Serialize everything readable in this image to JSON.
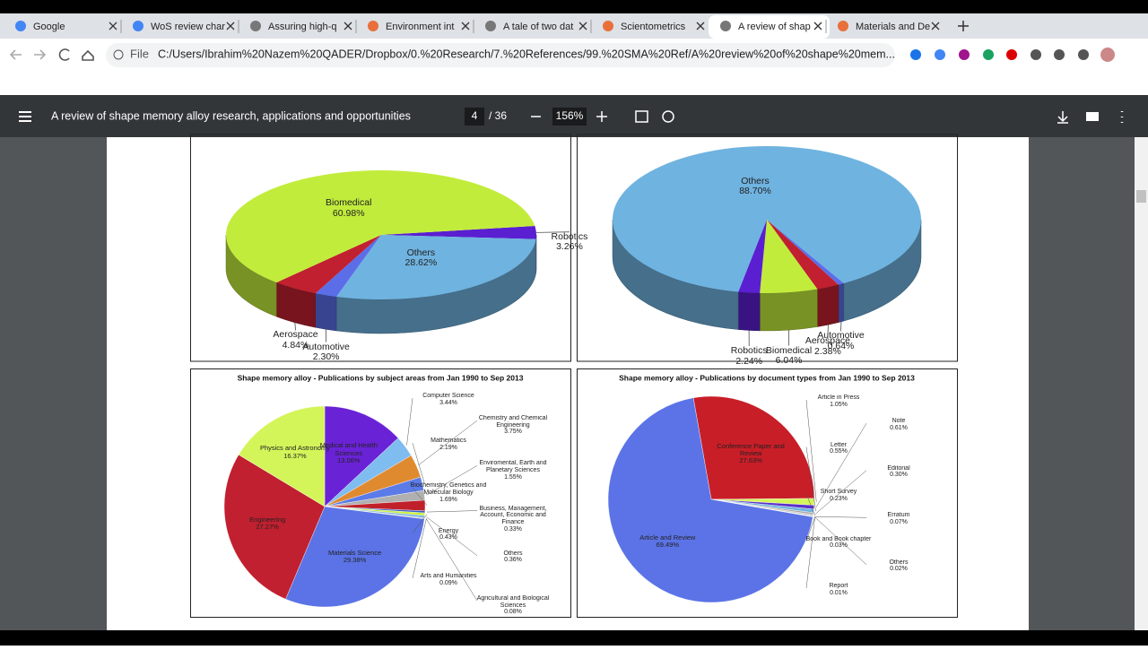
{
  "tabs": [
    "Google",
    "WoS review char",
    "Assuring high-q",
    "Environment int",
    "A tale of two dat",
    "Scientometrics",
    "A review of shap",
    "Materials and De"
  ],
  "address": {
    "prefix": "File",
    "url": "C:/Users/Ibrahim%20Nazem%20QADER/Dropbox/0.%20Research/7.%20References/99.%20SMA%20Ref/A%20review%20of%20shape%20mem..."
  },
  "pdf_toolbar": {
    "title": "A review of shape memory alloy research, applications and opportunities",
    "page": "4",
    "pages": "/ 36",
    "zoom": "156%"
  },
  "chart_data": [
    {
      "type": "pie3d",
      "categories": [
        "Robotics",
        "Others",
        "Automotive",
        "Aerospace",
        "Biomedical"
      ],
      "values": [
        3.26,
        28.62,
        2.3,
        4.84,
        60.98
      ],
      "value_labels": [
        "3.26%",
        "28.62%",
        "2.30%",
        "4.84%",
        "60.98%"
      ],
      "colors": [
        "#5a1fd0",
        "#6fb3e0",
        "#5b6ee8",
        "#c0202f",
        "#c2ec3c"
      ]
    },
    {
      "type": "pie3d",
      "categories": [
        "Automotive",
        "Aerospace",
        "Biomedical",
        "Robotics",
        "Others"
      ],
      "values": [
        0.64,
        2.38,
        6.04,
        2.24,
        88.7
      ],
      "value_labels": [
        "0.64%",
        "2.38%",
        "6.04%",
        "2.24%",
        "88.70%"
      ],
      "colors": [
        "#5b6ee8",
        "#c0202f",
        "#c2ec3c",
        "#5a1fd0",
        "#6fb3e0"
      ]
    },
    {
      "type": "pie",
      "title": "Shape memory alloy - Publications by subject areas from Jan 1990 to Sep 2013",
      "categories": [
        "Medical and Health Sciences",
        "Computer Science",
        "Chemistry and Chemical Engineering",
        "Mathematics",
        "Enviromental, Earth and Planetary Sciences",
        "Biochemistry, Genetics and Molecular Biology",
        "Business, Management, Account, Economic and Finance",
        "Energy",
        "Others",
        "Arts and Humanities",
        "Agricultural and Biological Sciences",
        "Materials Science",
        "Engineering",
        "Physics and Astronomy"
      ],
      "values": [
        13.06,
        3.44,
        3.75,
        2.19,
        1.55,
        1.69,
        0.33,
        0.43,
        0.36,
        0.09,
        0.08,
        29.38,
        27.27,
        16.37
      ],
      "value_labels": [
        "13.06%",
        "3.44%",
        "3.75%",
        "2.19%",
        "1.55%",
        "1.69%",
        "0.33%",
        "0.43%",
        "0.36%",
        "0.09%",
        "0.08%",
        "29.38%",
        "27.27%",
        "16.37%"
      ],
      "colors": [
        "#6a22d6",
        "#7fbcef",
        "#e08a30",
        "#5b7be8",
        "#b0b0b0",
        "#c0202a",
        "#3a5bc0",
        "#c8f03a",
        "#7ab0e0",
        "#888888",
        "#444444",
        "#5b73e6",
        "#c0202f",
        "#d4f55a"
      ]
    },
    {
      "type": "pie",
      "title": "Shape memory alloy - Publications by document types from Jan 1990 to Sep 2013",
      "categories": [
        "Conference Paper and Review",
        "Article in Press",
        "Note",
        "Letter",
        "Editorial",
        "Short Survey",
        "Erratum",
        "Book and Book chapter",
        "Others",
        "Report",
        "Article and Review"
      ],
      "values": [
        27.63,
        1.05,
        0.61,
        0.55,
        0.3,
        0.23,
        0.07,
        0.03,
        0.02,
        0.01,
        69.49
      ],
      "value_labels": [
        "27.63%",
        "1.05%",
        "0.61%",
        "0.55%",
        "0.30%",
        "0.23%",
        "0.07%",
        "0.03%",
        "0.02%",
        "0.01%",
        "69.49%"
      ],
      "colors": [
        "#c81e28",
        "#d4f55a",
        "#5b30c8",
        "#6fb3e0",
        "#aaaaaa",
        "#c0c0c0",
        "#888888",
        "#bbbbbb",
        "#999999",
        "#777777",
        "#5b73e6"
      ]
    }
  ]
}
